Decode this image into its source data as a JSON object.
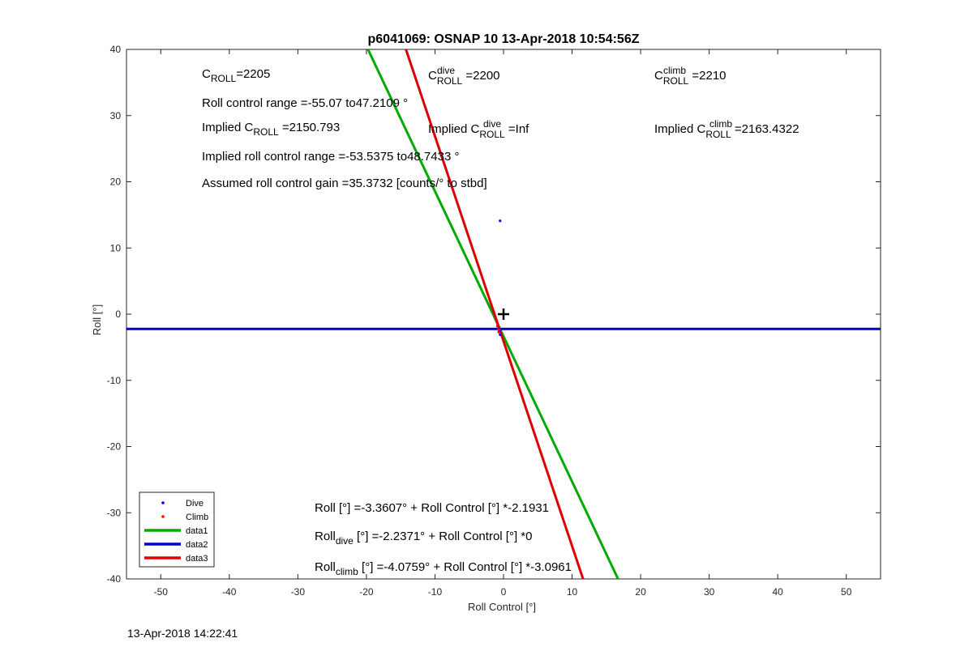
{
  "chart_data": {
    "type": "line",
    "title": "p6041069: OSNAP 10 13-Apr-2018 10:54:56Z",
    "xlabel": "Roll Control [°]",
    "ylabel": "Roll [°]",
    "xlim": [
      -55,
      55
    ],
    "ylim": [
      -40,
      40
    ],
    "xticks": [
      -50,
      -40,
      -30,
      -20,
      -10,
      0,
      10,
      20,
      30,
      40,
      50
    ],
    "yticks": [
      -40,
      -30,
      -20,
      -10,
      0,
      10,
      20,
      30,
      40
    ],
    "grid": true,
    "legend_position": "bottom-left",
    "series": [
      {
        "name": "Dive",
        "kind": "points",
        "color": "#0000ff",
        "points": [
          [
            -0.5,
            14.1
          ],
          [
            -0.7,
            -2.2
          ],
          [
            -0.6,
            -2.6
          ],
          [
            -0.5,
            -3.1
          ]
        ]
      },
      {
        "name": "Climb",
        "kind": "points",
        "color": "#ff0000",
        "points": [
          [
            -0.9,
            -1.8
          ],
          [
            -0.8,
            -2.3
          ],
          [
            -0.7,
            -2.7
          ]
        ]
      },
      {
        "name": "data1",
        "kind": "line",
        "color": "#00aa00",
        "intercept": -3.3607,
        "slope": -2.1931
      },
      {
        "name": "data2",
        "kind": "line",
        "color": "#0000cc",
        "intercept": -2.2371,
        "slope": 0
      },
      {
        "name": "data3",
        "kind": "line",
        "color": "#dd0000",
        "intercept": -4.0759,
        "slope": -3.0961
      }
    ],
    "marker": {
      "symbol": "+",
      "x": 0,
      "y": 0
    }
  },
  "annotations": {
    "c_roll": {
      "base": "C",
      "sub": "ROLL",
      "value": "=2205"
    },
    "c_roll_dive": {
      "base": "C",
      "sub": "ROLL",
      "sup": "dive",
      "value": " =2200"
    },
    "c_roll_climb": {
      "base": "C",
      "sub": "ROLL",
      "sup": "climb",
      "value": " =2210"
    },
    "roll_control_range": "Roll control range =-55.07 to47.2109 °",
    "implied_c_roll": {
      "prefix": "Implied C",
      "sub": "ROLL",
      "value": " =2150.793"
    },
    "implied_c_roll_dive": {
      "prefix": "Implied C",
      "sub": "ROLL",
      "sup": "dive",
      "value": " =Inf"
    },
    "implied_c_roll_climb": {
      "prefix": "Implied C",
      "sub": "ROLL",
      "sup": "climb",
      "value": " =2163.4322"
    },
    "implied_range": "Implied roll control range =-53.5375 to48.7433 °",
    "assumed_gain": "Assumed roll control gain =35.3732 [counts/° to stbd]",
    "fit_all": "Roll [°] =-3.3607° + Roll Control [°] *-2.1931",
    "fit_dive": {
      "base": "Roll",
      "sub": "dive",
      "rest": " [°] =-2.2371° + Roll Control [°] *0"
    },
    "fit_climb": {
      "base": "Roll",
      "sub": "climb",
      "rest": " [°] =-4.0759° + Roll Control [°] *-3.0961"
    }
  },
  "footer": {
    "timestamp": "13-Apr-2018 14:22:41"
  }
}
